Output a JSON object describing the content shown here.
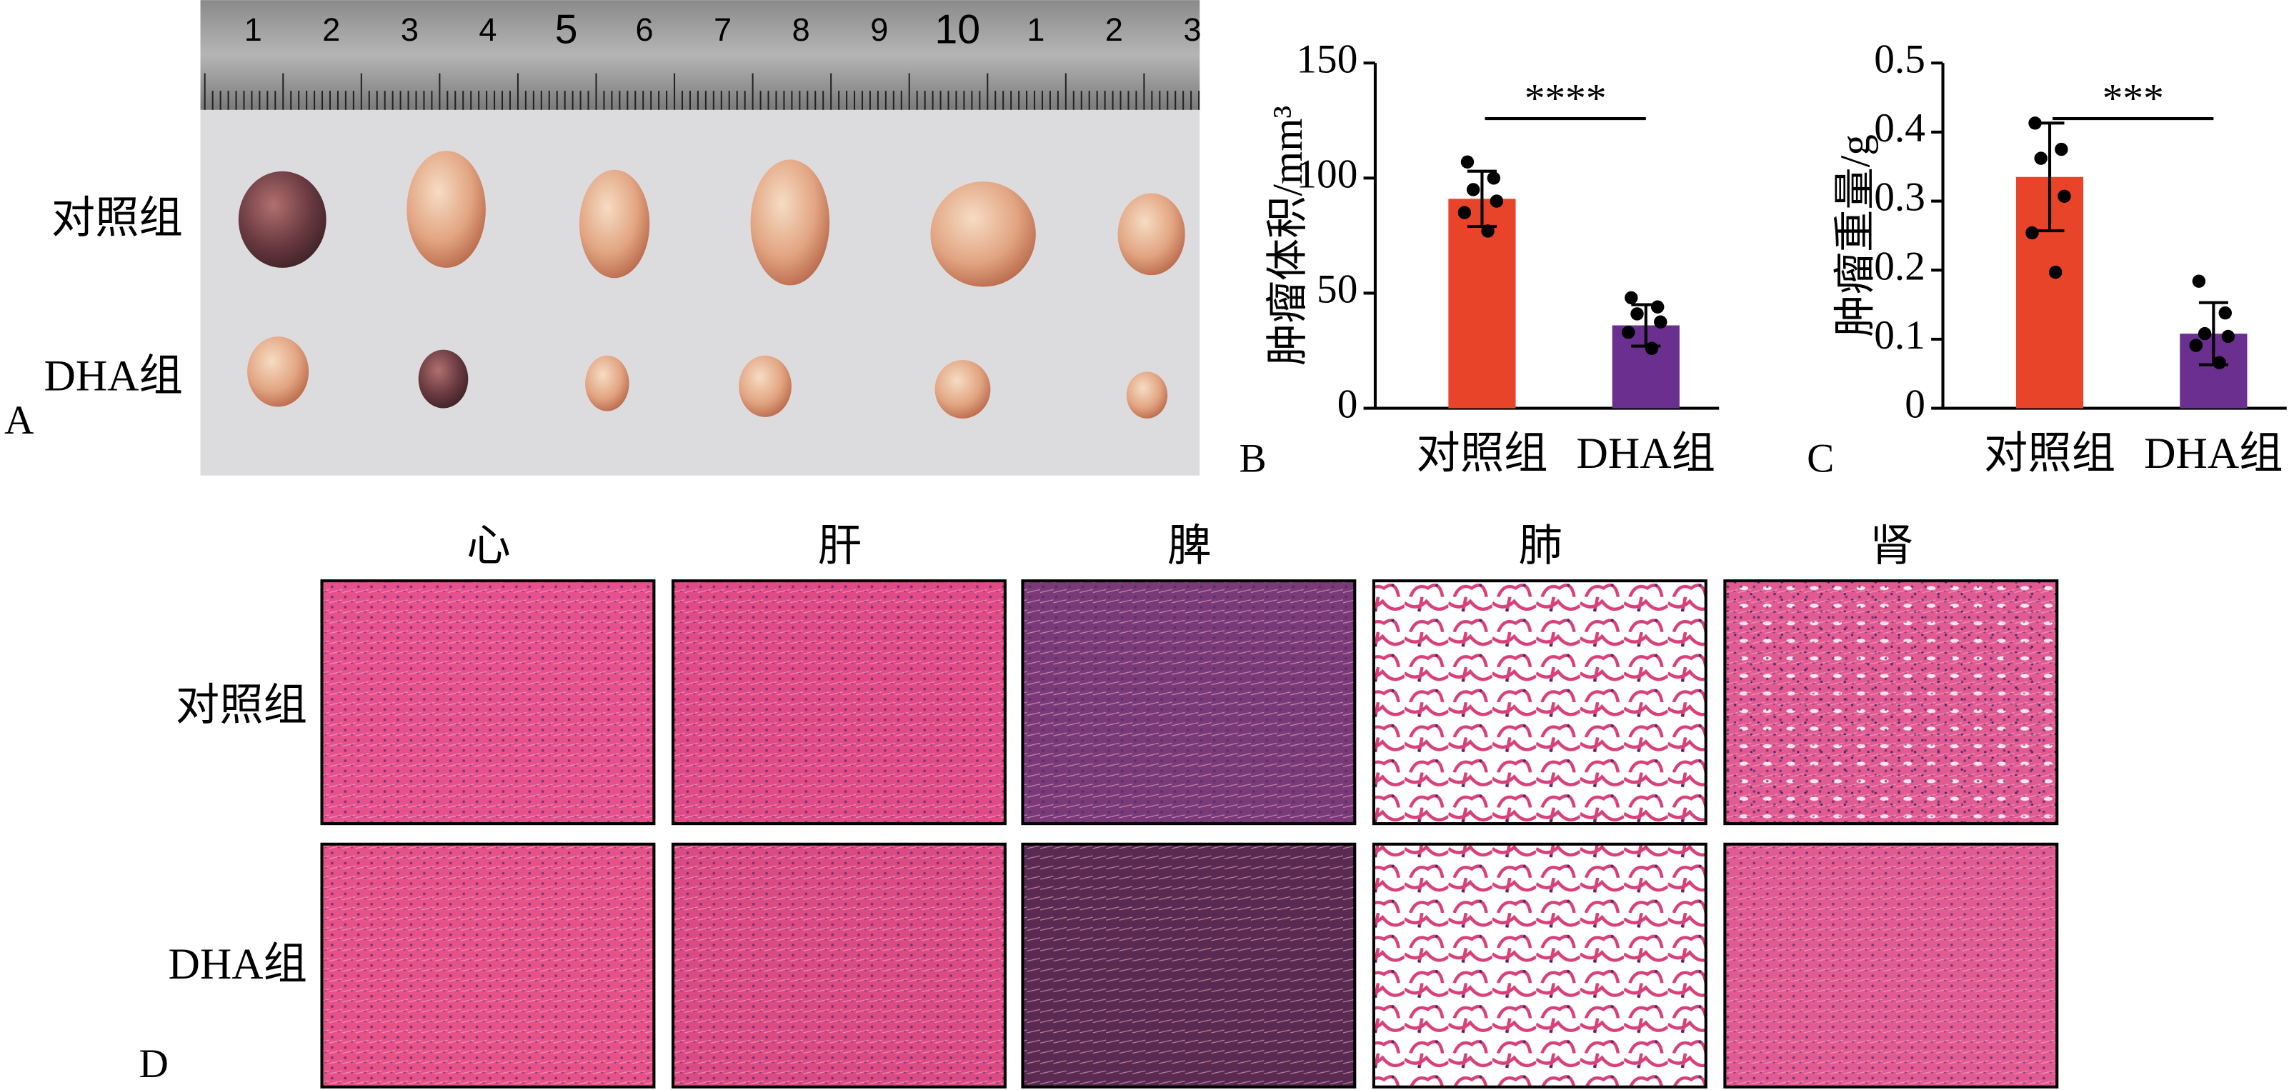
{
  "panel_a": {
    "label": "A",
    "ruler": [
      "1",
      "2",
      "3",
      "4",
      "5",
      "6",
      "7",
      "8",
      "9",
      "10",
      "1",
      "2",
      "3"
    ],
    "rows": [
      "对照组",
      "DHA组"
    ]
  },
  "chart_data": [
    {
      "type": "bar",
      "label": "B",
      "ylabel": "肿瘤体积/mm³",
      "categories": [
        "对照组",
        "DHA组"
      ],
      "values": [
        91,
        36
      ],
      "errors": [
        12,
        9
      ],
      "colors": [
        "#e8442a",
        "#6a2f8f"
      ],
      "points": [
        [
          107,
          100,
          95,
          90,
          85,
          77
        ],
        [
          48,
          44,
          41,
          37.5,
          33,
          26
        ]
      ],
      "significance": "****",
      "ylim": [
        0,
        150
      ],
      "yticks": [
        0,
        50,
        100,
        150
      ]
    },
    {
      "type": "bar",
      "label": "C",
      "ylabel": "肿瘤重量/g",
      "categories": [
        "对照组",
        "DHA组"
      ],
      "values": [
        0.335,
        0.108
      ],
      "errors": [
        0.078,
        0.045
      ],
      "colors": [
        "#e8442a",
        "#6a2f8f"
      ],
      "points": [
        [
          0.413,
          0.375,
          0.362,
          0.307,
          0.254,
          0.197
        ],
        [
          0.184,
          0.138,
          0.108,
          0.104,
          0.091,
          0.066
        ]
      ],
      "significance": "***",
      "ylim": [
        0,
        0.5
      ],
      "yticks": [
        0,
        0.1,
        0.2,
        0.3,
        0.4,
        0.5
      ]
    }
  ],
  "panel_d": {
    "label": "D",
    "columns": [
      "心",
      "肝",
      "脾",
      "肺",
      "肾"
    ],
    "rows": [
      "对照组",
      "DHA组"
    ]
  }
}
